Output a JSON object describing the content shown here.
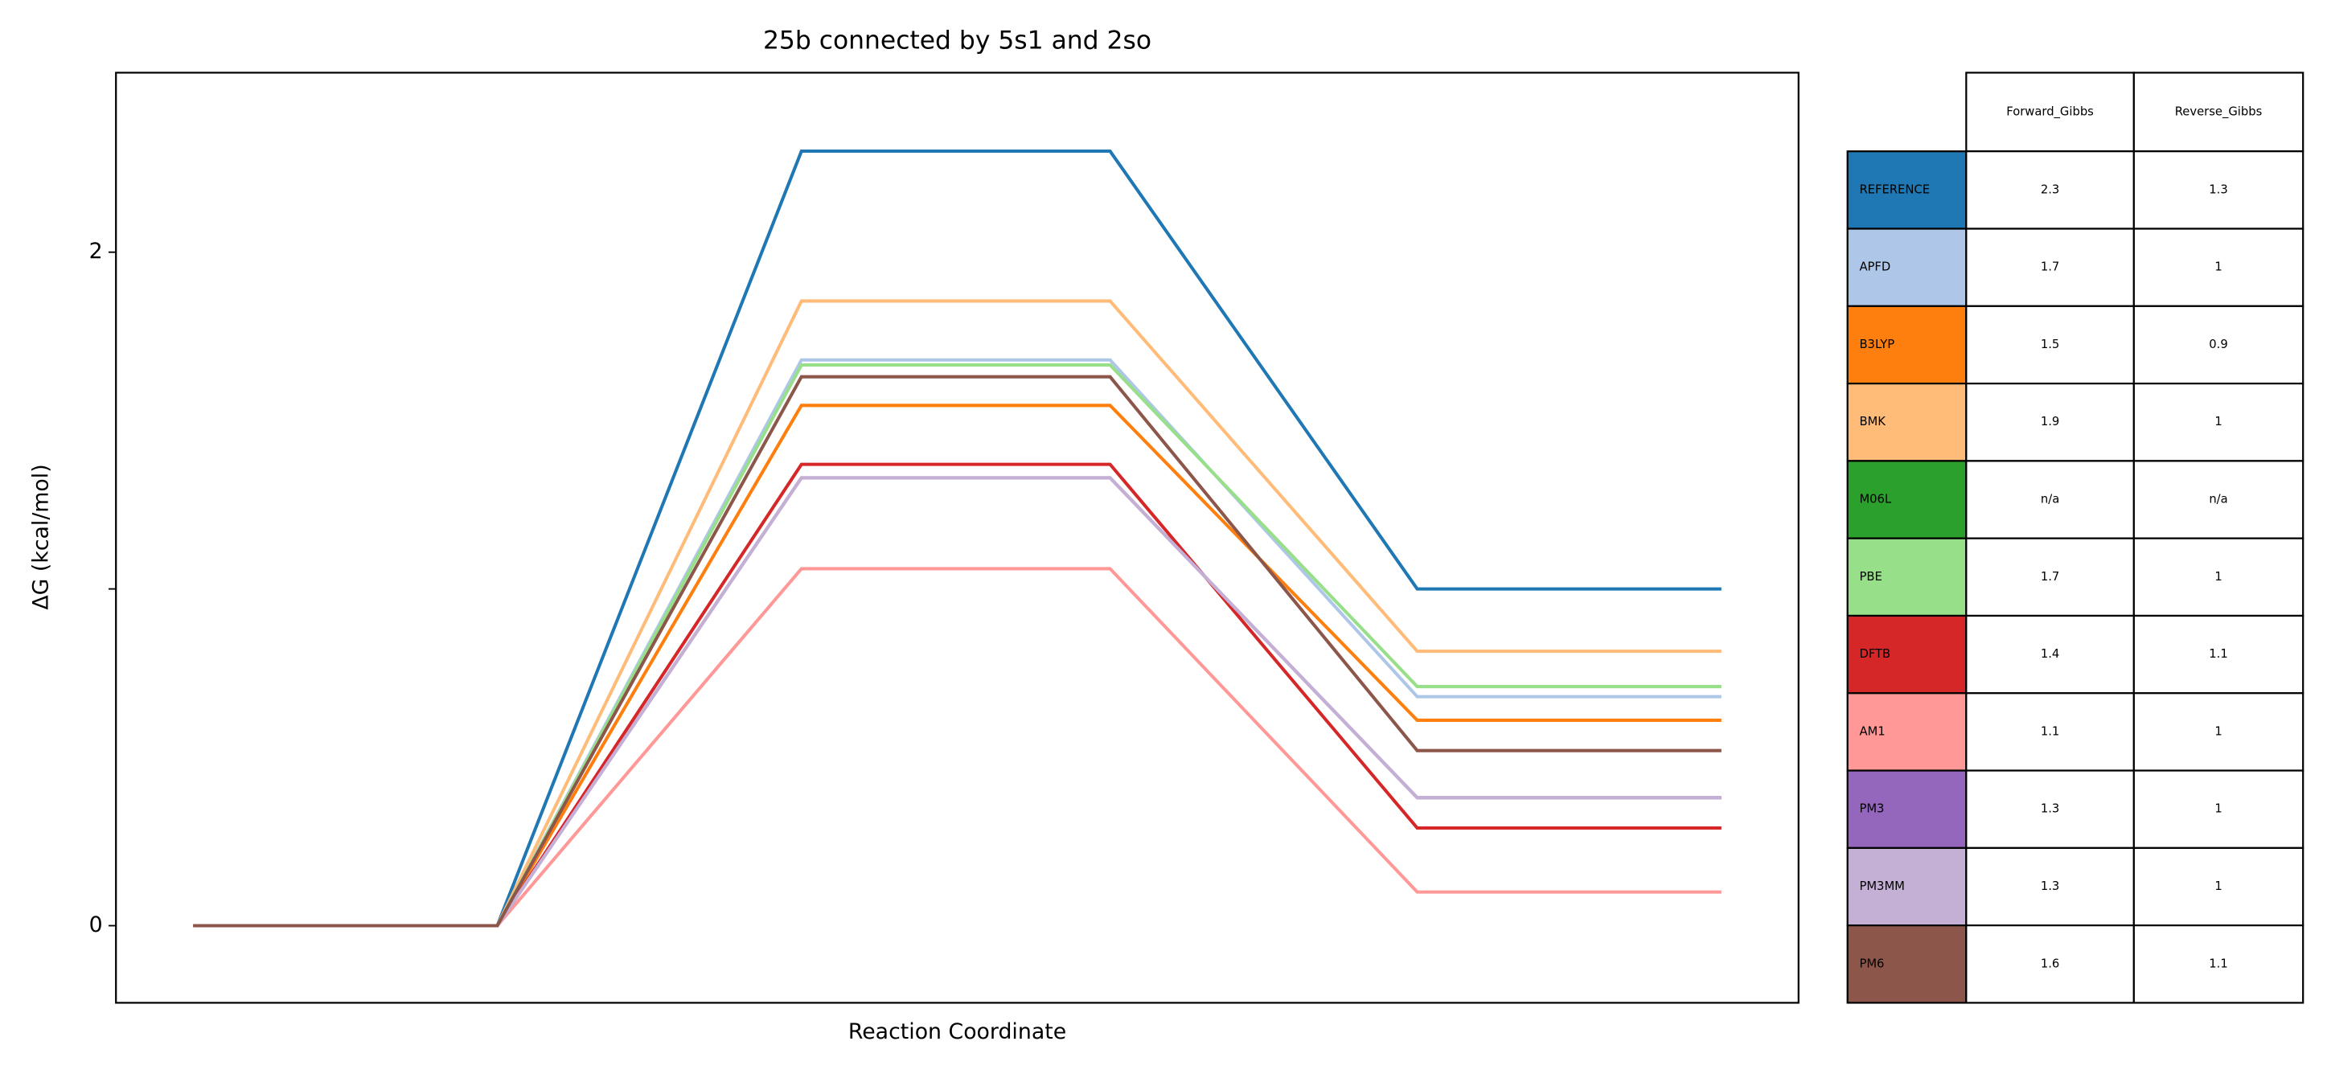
{
  "chart_data": {
    "type": "line",
    "title": "25b connected by 5s1 and 2so",
    "xlabel": "Reaction Coordinate",
    "ylabel": "ΔG (kcal/mol)",
    "ylim": [
      -0.229,
      2.533
    ],
    "yticks": [
      0,
      2
    ],
    "yticks_unlabeled": [
      1
    ],
    "columns": [
      "Forward_Gibbs",
      "Reverse_Gibbs"
    ],
    "series": [
      {
        "name": "REFERENCE",
        "color": "#1f77b4",
        "values": [
          0,
          0,
          2.3,
          2.3,
          1.0,
          1.0
        ],
        "table": [
          2.3,
          1.3
        ]
      },
      {
        "name": "APFD",
        "color": "#aec7e8",
        "values": [
          0,
          0,
          1.68,
          1.68,
          0.68,
          0.68
        ],
        "table": [
          1.7,
          1.0
        ]
      },
      {
        "name": "B3LYP",
        "color": "#ff7f0e",
        "values": [
          0,
          0,
          1.545,
          1.545,
          0.61,
          0.61
        ],
        "table": [
          1.5,
          0.9
        ]
      },
      {
        "name": "BMK",
        "color": "#ffbb78",
        "values": [
          0,
          0,
          1.855,
          1.855,
          0.815,
          0.815
        ],
        "table": [
          1.9,
          1.0
        ]
      },
      {
        "name": "M06L",
        "color": "#2ca02c",
        "values": [
          null,
          null,
          null,
          null,
          null,
          null
        ],
        "table": [
          "n/a",
          "n/a"
        ]
      },
      {
        "name": "PBE",
        "color": "#98df8a",
        "values": [
          0,
          0,
          1.665,
          1.665,
          0.71,
          0.71
        ],
        "table": [
          1.7,
          1.0
        ]
      },
      {
        "name": "DFTB",
        "color": "#d62728",
        "values": [
          0,
          0,
          1.37,
          1.37,
          0.29,
          0.29
        ],
        "table": [
          1.4,
          1.1
        ]
      },
      {
        "name": "AM1",
        "color": "#ff9896",
        "values": [
          0,
          0,
          1.06,
          1.06,
          0.1,
          0.1
        ],
        "table": [
          1.1,
          1.0
        ]
      },
      {
        "name": "PM3",
        "color": "#9467bd",
        "values": [
          0,
          0,
          1.33,
          1.33,
          0.38,
          0.38
        ],
        "table": [
          1.3,
          1.0
        ]
      },
      {
        "name": "PM3MM",
        "color": "#c5b0d5",
        "values": [
          0,
          0,
          1.33,
          1.33,
          0.38,
          0.38
        ],
        "table": [
          1.3,
          1.0
        ]
      },
      {
        "name": "PM6",
        "color": "#8c564b",
        "values": [
          0,
          0,
          1.63,
          1.63,
          0.52,
          0.52
        ],
        "table": [
          1.6,
          1.1
        ]
      }
    ]
  }
}
